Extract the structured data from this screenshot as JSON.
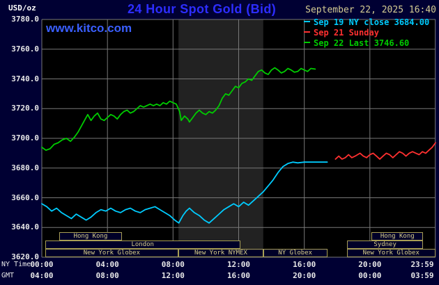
{
  "header": {
    "units": "USD/oz",
    "title": "24 Hour Spot Gold (Bid)",
    "datetime": "September 22, 2025 16:40",
    "watermark": "www.kitco.com"
  },
  "legend": [
    {
      "label": "Sep 19 NY close 3684.00",
      "color": "#00ccff"
    },
    {
      "label": "Sep 21 Sunday",
      "color": "#ff3030"
    },
    {
      "label": "Sep 22 Last 3746.60",
      "color": "#00cc00"
    }
  ],
  "axes": {
    "ny_time_label": "NY Time",
    "gmt_label": "GMT",
    "tick_hours": [
      0,
      4,
      8,
      12,
      16,
      20,
      23.983
    ],
    "ny_ticks": [
      "00:00",
      "04:00",
      "08:00",
      "12:00",
      "16:00",
      "20:00",
      "23:59"
    ],
    "gmt_ticks": [
      "04:00",
      "08:00",
      "12:00",
      "16:00",
      "20:00",
      "00:00",
      "03:59"
    ],
    "y_ticks": [
      "3780.0",
      "3760.0",
      "3740.0",
      "3720.0",
      "3700.0",
      "3680.0",
      "3660.0",
      "3640.0",
      "3620.0"
    ]
  },
  "sessions": [
    {
      "row": 1,
      "label": "Hong Kong",
      "start": 1.05,
      "end": 4.9
    },
    {
      "row": 1,
      "label": "Hong Kong",
      "start": 20.1,
      "end": 23.25
    },
    {
      "row": 2,
      "label": "London",
      "start": 0.2,
      "end": 12.1
    },
    {
      "row": 2,
      "label": "Sydney",
      "start": 18.6,
      "end": 23.25
    },
    {
      "row": 3,
      "label": "New York Globex",
      "start": 0.2,
      "end": 8.33
    },
    {
      "row": 3,
      "label": "New York NYMEX",
      "start": 8.33,
      "end": 13.5
    },
    {
      "row": 3,
      "label": "NY Globex",
      "start": 13.5,
      "end": 17.4
    },
    {
      "row": 3,
      "label": "New York Globex",
      "start": 18.6,
      "end": 23.98
    }
  ],
  "colors": {
    "page_bg": "#000033",
    "plot_bg": "#000000",
    "grid": "#787878",
    "nymex_band": "#222222",
    "title_blue": "#2d2dff",
    "watermark_blue": "#3a5fff",
    "date_tan": "#d6cd93",
    "axis_text": "#e8e8e8",
    "session_border": "#a89e55",
    "session_text": "#d9cf8a"
  },
  "chart_data": {
    "type": "line",
    "title": "24 Hour Spot Gold (Bid)",
    "units": "USD/oz",
    "x_unit": "hours NY time",
    "xlim": [
      0,
      24
    ],
    "ylim": [
      3620,
      3780
    ],
    "y_tick_step": 20,
    "grid": true,
    "legend_position": "top-right",
    "nymex_floor_band_hours": [
      8.33,
      13.5
    ],
    "series": [
      {
        "id": "sep19",
        "name": "Sep 19 NY close",
        "close_value": 3684.0,
        "color": "#00ccff",
        "points": [
          [
            0,
            3656
          ],
          [
            0.3,
            3654
          ],
          [
            0.6,
            3651
          ],
          [
            0.9,
            3653
          ],
          [
            1.2,
            3650
          ],
          [
            1.5,
            3648
          ],
          [
            1.8,
            3646
          ],
          [
            2.1,
            3649
          ],
          [
            2.4,
            3647
          ],
          [
            2.7,
            3645
          ],
          [
            3,
            3647
          ],
          [
            3.3,
            3650
          ],
          [
            3.6,
            3652
          ],
          [
            3.9,
            3651
          ],
          [
            4.2,
            3653
          ],
          [
            4.5,
            3651
          ],
          [
            4.8,
            3650
          ],
          [
            5.1,
            3652
          ],
          [
            5.4,
            3653
          ],
          [
            5.7,
            3651
          ],
          [
            6,
            3650
          ],
          [
            6.3,
            3652
          ],
          [
            6.6,
            3653
          ],
          [
            6.9,
            3654
          ],
          [
            7.2,
            3652
          ],
          [
            7.5,
            3650
          ],
          [
            7.8,
            3648
          ],
          [
            8.1,
            3645
          ],
          [
            8.35,
            3643
          ],
          [
            8.6,
            3648
          ],
          [
            8.8,
            3651
          ],
          [
            9,
            3653
          ],
          [
            9.3,
            3650
          ],
          [
            9.6,
            3648
          ],
          [
            9.9,
            3645
          ],
          [
            10.2,
            3643
          ],
          [
            10.5,
            3646
          ],
          [
            10.8,
            3649
          ],
          [
            11.1,
            3652
          ],
          [
            11.4,
            3654
          ],
          [
            11.7,
            3656
          ],
          [
            12,
            3654
          ],
          [
            12.3,
            3657
          ],
          [
            12.6,
            3655
          ],
          [
            12.9,
            3658
          ],
          [
            13.2,
            3661
          ],
          [
            13.5,
            3664
          ],
          [
            13.8,
            3668
          ],
          [
            14.1,
            3672
          ],
          [
            14.4,
            3677
          ],
          [
            14.7,
            3681
          ],
          [
            15,
            3683
          ],
          [
            15.3,
            3684
          ],
          [
            15.6,
            3683.5
          ],
          [
            16,
            3684
          ],
          [
            16.5,
            3684
          ],
          [
            17,
            3684
          ],
          [
            17.4,
            3684
          ]
        ]
      },
      {
        "id": "sep21",
        "name": "Sep 21 Sunday",
        "color": "#ff3030",
        "points": [
          [
            17.9,
            3686
          ],
          [
            18.1,
            3688
          ],
          [
            18.3,
            3686
          ],
          [
            18.5,
            3687
          ],
          [
            18.7,
            3689
          ],
          [
            18.9,
            3687
          ],
          [
            19.1,
            3688
          ],
          [
            19.4,
            3690
          ],
          [
            19.6,
            3688
          ],
          [
            19.8,
            3687
          ],
          [
            20,
            3689
          ],
          [
            20.2,
            3690
          ],
          [
            20.4,
            3688
          ],
          [
            20.6,
            3686
          ],
          [
            20.8,
            3688
          ],
          [
            21,
            3690
          ],
          [
            21.2,
            3689
          ],
          [
            21.4,
            3687
          ],
          [
            21.6,
            3689
          ],
          [
            21.8,
            3691
          ],
          [
            22,
            3690
          ],
          [
            22.2,
            3688
          ],
          [
            22.4,
            3690
          ],
          [
            22.6,
            3691
          ],
          [
            22.8,
            3690
          ],
          [
            23,
            3689
          ],
          [
            23.2,
            3691
          ],
          [
            23.4,
            3690
          ],
          [
            23.6,
            3692
          ],
          [
            23.8,
            3694
          ],
          [
            24,
            3697
          ]
        ]
      },
      {
        "id": "sep22",
        "name": "Sep 22 Last",
        "last_value": 3746.6,
        "color": "#00cc00",
        "points": [
          [
            0,
            3694
          ],
          [
            0.25,
            3692
          ],
          [
            0.5,
            3693
          ],
          [
            0.75,
            3696
          ],
          [
            1,
            3697
          ],
          [
            1.25,
            3699
          ],
          [
            1.5,
            3700
          ],
          [
            1.75,
            3698
          ],
          [
            2,
            3701
          ],
          [
            2.2,
            3704
          ],
          [
            2.4,
            3708
          ],
          [
            2.6,
            3712
          ],
          [
            2.8,
            3716
          ],
          [
            3,
            3712
          ],
          [
            3.2,
            3715
          ],
          [
            3.4,
            3717
          ],
          [
            3.6,
            3713
          ],
          [
            3.8,
            3712
          ],
          [
            4,
            3714
          ],
          [
            4.2,
            3716
          ],
          [
            4.4,
            3715
          ],
          [
            4.6,
            3713
          ],
          [
            4.8,
            3716
          ],
          [
            5,
            3718
          ],
          [
            5.2,
            3719
          ],
          [
            5.4,
            3717
          ],
          [
            5.6,
            3718
          ],
          [
            5.8,
            3720
          ],
          [
            6,
            3722
          ],
          [
            6.2,
            3721
          ],
          [
            6.4,
            3722
          ],
          [
            6.6,
            3723
          ],
          [
            6.8,
            3722
          ],
          [
            7,
            3723
          ],
          [
            7.2,
            3722
          ],
          [
            7.4,
            3724
          ],
          [
            7.6,
            3723
          ],
          [
            7.8,
            3725
          ],
          [
            8,
            3724
          ],
          [
            8.2,
            3723
          ],
          [
            8.4,
            3718
          ],
          [
            8.5,
            3712
          ],
          [
            8.7,
            3715
          ],
          [
            8.9,
            3713
          ],
          [
            9,
            3711
          ],
          [
            9.2,
            3714
          ],
          [
            9.4,
            3717
          ],
          [
            9.6,
            3719
          ],
          [
            9.8,
            3717
          ],
          [
            10,
            3716
          ],
          [
            10.2,
            3718
          ],
          [
            10.4,
            3717
          ],
          [
            10.6,
            3719
          ],
          [
            10.8,
            3722
          ],
          [
            11,
            3727
          ],
          [
            11.2,
            3730
          ],
          [
            11.4,
            3729
          ],
          [
            11.6,
            3732
          ],
          [
            11.8,
            3735
          ],
          [
            12,
            3734
          ],
          [
            12.2,
            3737
          ],
          [
            12.4,
            3738
          ],
          [
            12.6,
            3740
          ],
          [
            12.8,
            3739
          ],
          [
            13,
            3742
          ],
          [
            13.2,
            3745
          ],
          [
            13.4,
            3746
          ],
          [
            13.6,
            3744
          ],
          [
            13.8,
            3743
          ],
          [
            14,
            3746
          ],
          [
            14.2,
            3747.5
          ],
          [
            14.4,
            3746
          ],
          [
            14.6,
            3744
          ],
          [
            14.8,
            3745
          ],
          [
            15,
            3747
          ],
          [
            15.2,
            3746
          ],
          [
            15.4,
            3744.5
          ],
          [
            15.6,
            3745
          ],
          [
            15.8,
            3747
          ],
          [
            16,
            3746
          ],
          [
            16.2,
            3745
          ],
          [
            16.4,
            3747
          ],
          [
            16.67,
            3746.6
          ]
        ]
      }
    ]
  }
}
